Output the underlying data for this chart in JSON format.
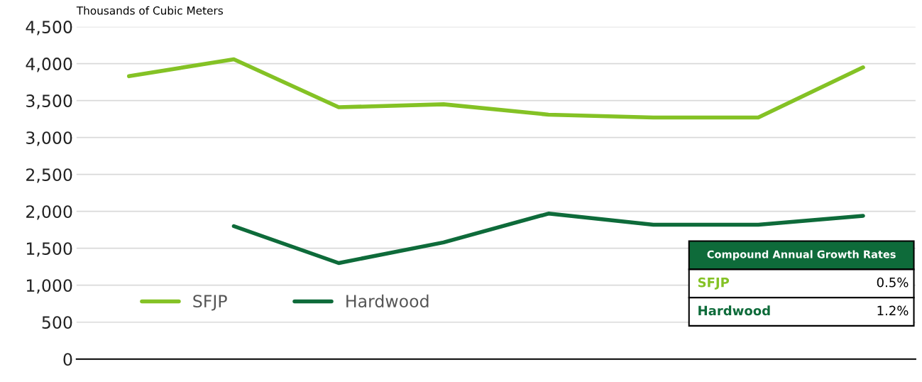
{
  "chart_data": {
    "type": "line",
    "ylabel": "Thousands of Cubic Meters",
    "categories": [
      null,
      null,
      null,
      null,
      null,
      null,
      null,
      null
    ],
    "series": [
      {
        "name": "SFJP",
        "color": "#84c225",
        "values": [
          3830,
          4060,
          3410,
          3450,
          3310,
          3270,
          3270,
          3950
        ]
      },
      {
        "name": "Hardwood",
        "color": "#0e6b3a",
        "values": [
          null,
          1800,
          1300,
          1580,
          1970,
          1820,
          1820,
          1940
        ]
      }
    ],
    "ylim": [
      0,
      4500
    ],
    "yticks": [
      0,
      {
        "value": 500,
        "label": "500"
      },
      {
        "value": 1000,
        "label": "1,000"
      },
      {
        "value": 1500,
        "label": "1,500"
      },
      {
        "value": 2000,
        "label": "2,000"
      },
      {
        "value": 2500,
        "label": "2,500"
      },
      {
        "value": 3000,
        "label": "3,000"
      },
      {
        "value": 3500,
        "label": "3,500"
      },
      {
        "value": 4000,
        "label": "4,000"
      },
      {
        "value": 4500,
        "label": "4,500"
      }
    ],
    "grid": "y",
    "legend": "bottom left",
    "marker": "none",
    "line_style": "solid",
    "annotations": [
      "Compound Annual Growth Rates",
      "SFJP",
      "0.5%",
      "Hardwood",
      "1.2%"
    ]
  }
}
